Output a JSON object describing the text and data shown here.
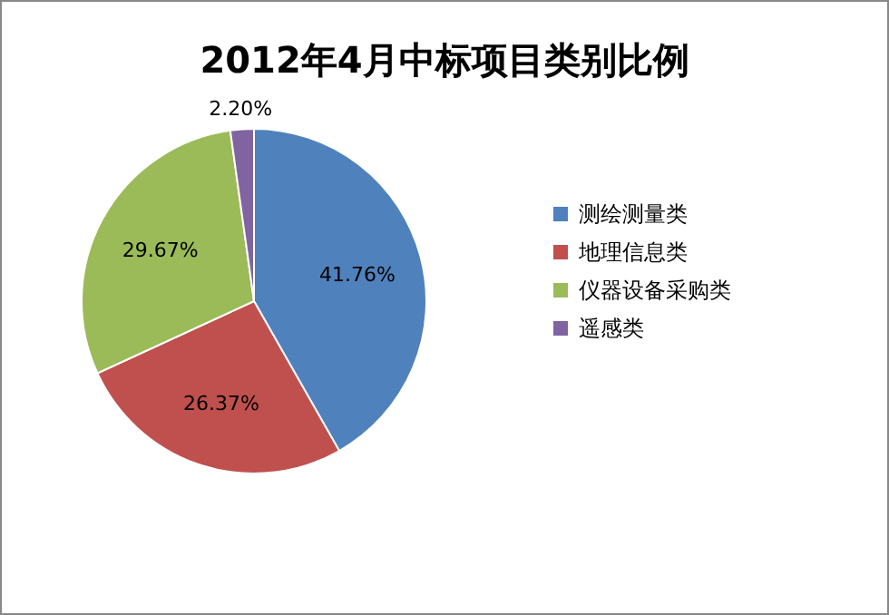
{
  "chart_data": {
    "type": "pie",
    "title": "2012年4月中标项目类别比例",
    "categories": [
      "测绘测量类",
      "地理信息类",
      "仪器设备采购类",
      "遥感类"
    ],
    "values": [
      41.76,
      26.37,
      29.67,
      2.2
    ],
    "value_labels": [
      "41.76%",
      "26.37%",
      "29.67%",
      "2.20%"
    ],
    "colors": [
      "#4f81bd",
      "#c0504d",
      "#9bbb59",
      "#8064a2"
    ],
    "legend": "right"
  }
}
